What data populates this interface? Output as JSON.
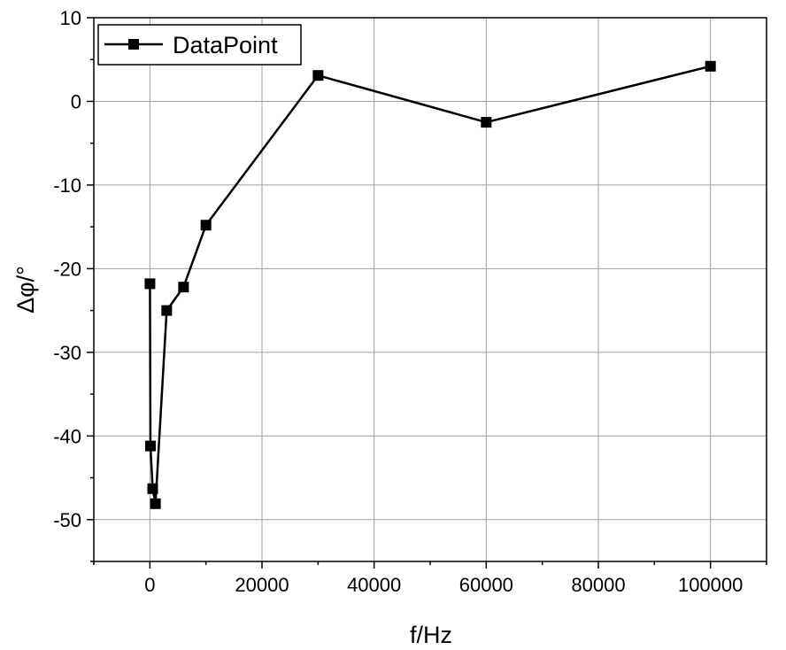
{
  "chart_data": {
    "type": "line",
    "xlabel": "f/Hz",
    "ylabel": "Δφ/°",
    "xlim": [
      -10000,
      110000
    ],
    "ylim": [
      -55,
      10
    ],
    "xticks": [
      0,
      20000,
      40000,
      60000,
      80000,
      100000
    ],
    "yticks": [
      10,
      0,
      -10,
      -20,
      -30,
      -40,
      -50
    ],
    "grid": true,
    "legend_position": "top-left",
    "series": [
      {
        "name": "DataPoint",
        "color": "#000000",
        "marker": "square",
        "x": [
          10,
          100,
          500,
          1000,
          3000,
          6000,
          10000,
          30000,
          60000,
          100000
        ],
        "y": [
          -21.8,
          -41.2,
          -46.3,
          -48.1,
          -25.0,
          -22.2,
          -14.8,
          3.1,
          -2.5,
          4.2
        ]
      }
    ]
  }
}
